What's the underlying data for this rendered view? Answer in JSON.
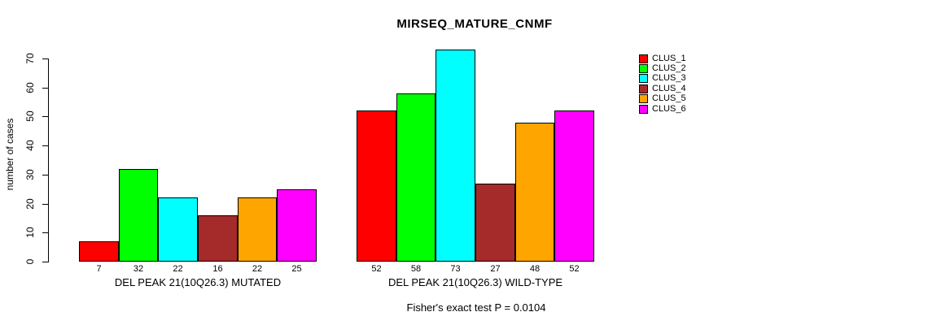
{
  "title": "MIRSEQ_MATURE_CNMF",
  "footer": "Fisher's exact test P = 0.0104",
  "chart_data": {
    "type": "bar",
    "title": "MIRSEQ_MATURE_CNMF",
    "ylabel": "number of cases",
    "xlabel": "",
    "ylim": [
      0,
      70
    ],
    "yticks": [
      0,
      10,
      20,
      30,
      40,
      50,
      60,
      70
    ],
    "grid": false,
    "legend_position": "right",
    "annotation": "Fisher's exact test P = 0.0104",
    "series": [
      {
        "name": "CLUS_1",
        "color": "#ff0000",
        "values": [
          7,
          52
        ]
      },
      {
        "name": "CLUS_2",
        "color": "#00ff00",
        "values": [
          32,
          58
        ]
      },
      {
        "name": "CLUS_3",
        "color": "#00ffff",
        "values": [
          22,
          73
        ]
      },
      {
        "name": "CLUS_4",
        "color": "#a52a2a",
        "values": [
          16,
          27
        ]
      },
      {
        "name": "CLUS_5",
        "color": "#ffa500",
        "values": [
          22,
          48
        ]
      },
      {
        "name": "CLUS_6",
        "color": "#ff00ff",
        "values": [
          25,
          52
        ]
      }
    ],
    "groups": [
      {
        "label": "DEL PEAK 21(10Q26.3) MUTATED",
        "values": [
          7,
          32,
          22,
          16,
          22,
          25
        ]
      },
      {
        "label": "DEL PEAK 21(10Q26.3) WILD-TYPE",
        "values": [
          52,
          58,
          73,
          27,
          48,
          52
        ]
      }
    ],
    "bar_colors": [
      "#ff0000",
      "#00ff00",
      "#00ffff",
      "#a52a2a",
      "#ffa500",
      "#ff00ff"
    ],
    "legend": [
      {
        "label": "CLUS_1",
        "color": "#ff0000"
      },
      {
        "label": "CLUS_2",
        "color": "#00ff00"
      },
      {
        "label": "CLUS_3",
        "color": "#00ffff"
      },
      {
        "label": "CLUS_4",
        "color": "#a52a2a"
      },
      {
        "label": "CLUS_5",
        "color": "#ffa500"
      },
      {
        "label": "CLUS_6",
        "color": "#ff00ff"
      }
    ]
  }
}
